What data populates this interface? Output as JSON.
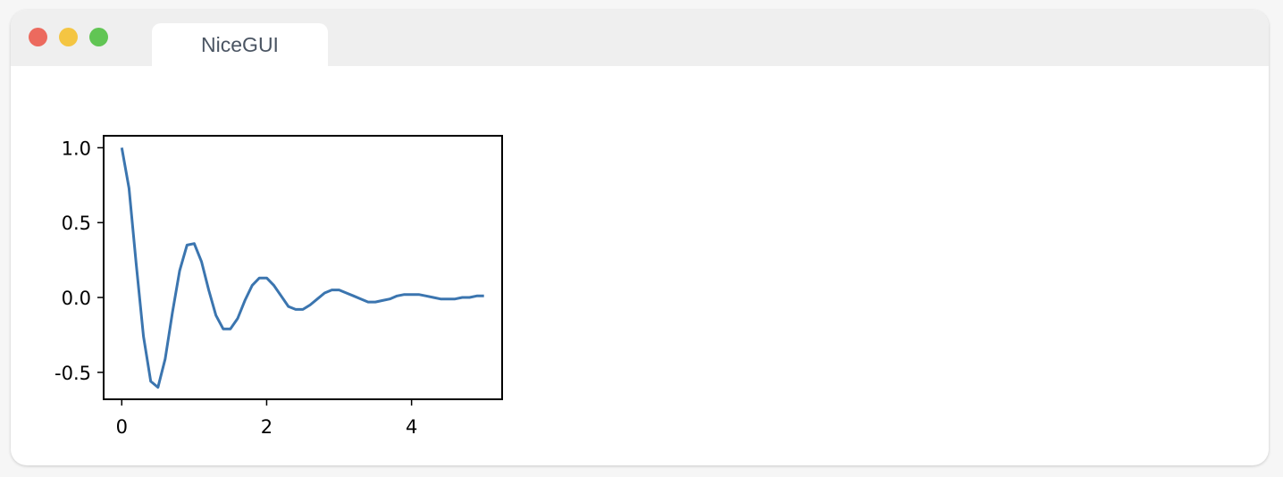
{
  "window": {
    "tab_title": "NiceGUI",
    "controls": {
      "close_color": "#ec6a5e",
      "minimize_color": "#f4c542",
      "zoom_color": "#61c554"
    }
  },
  "chart_data": {
    "type": "line",
    "title": "",
    "xlabel": "",
    "ylabel": "",
    "xlim": [
      -0.25,
      5.25
    ],
    "ylim": [
      -0.68,
      1.08
    ],
    "xticks": [
      0,
      2,
      4
    ],
    "xtick_labels": [
      "0",
      "2",
      "4"
    ],
    "yticks": [
      1.0,
      0.5,
      0.0,
      -0.5
    ],
    "ytick_labels": [
      "1.0",
      "0.5",
      "0.0",
      "-0.5"
    ],
    "grid": false,
    "line_color": "#3b75af",
    "x": [
      0,
      0.1,
      0.2,
      0.3,
      0.4,
      0.5,
      0.6,
      0.7,
      0.8,
      0.9,
      1.0,
      1.1,
      1.2,
      1.3,
      1.4,
      1.5,
      1.6,
      1.7,
      1.8,
      1.9,
      2.0,
      2.1,
      2.2,
      2.3,
      2.4,
      2.5,
      2.6,
      2.7,
      2.8,
      2.9,
      3.0,
      3.1,
      3.2,
      3.3,
      3.4,
      3.5,
      3.6,
      3.7,
      3.8,
      3.9,
      4.0,
      4.1,
      4.2,
      4.3,
      4.4,
      4.5,
      4.6,
      4.7,
      4.8,
      4.9,
      5.0
    ],
    "y": [
      1.0,
      0.73,
      0.22,
      -0.26,
      -0.56,
      -0.6,
      -0.41,
      -0.1,
      0.18,
      0.35,
      0.36,
      0.24,
      0.05,
      -0.12,
      -0.21,
      -0.21,
      -0.14,
      -0.02,
      0.08,
      0.13,
      0.13,
      0.08,
      0.01,
      -0.06,
      -0.08,
      -0.08,
      -0.05,
      -0.01,
      0.03,
      0.05,
      0.05,
      0.03,
      0.01,
      -0.01,
      -0.03,
      -0.03,
      -0.02,
      -0.01,
      0.01,
      0.02,
      0.02,
      0.02,
      0.01,
      0.0,
      -0.01,
      -0.01,
      -0.01,
      0.0,
      0.0,
      0.01,
      0.01
    ]
  }
}
